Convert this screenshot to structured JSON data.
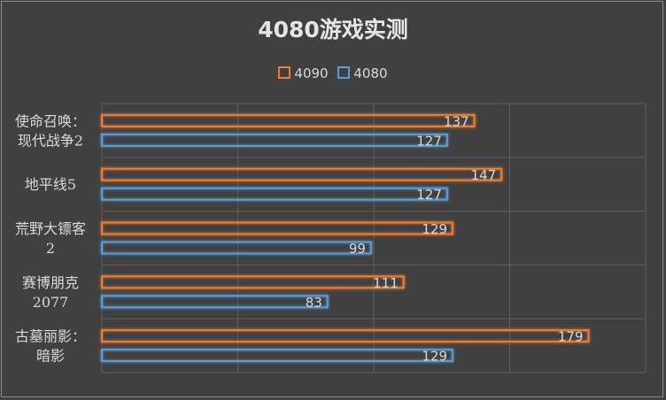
{
  "chart_data": {
    "type": "bar",
    "orientation": "horizontal",
    "title": "4080游戏实测",
    "categories": [
      [
        "使命召唤：",
        "现代战争2"
      ],
      [
        "地平线5"
      ],
      [
        "荒野大镖客",
        "2"
      ],
      [
        "赛博朋克",
        "2077"
      ],
      [
        "古墓丽影：",
        "暗影"
      ]
    ],
    "series": [
      {
        "name": "4090",
        "values": [
          137,
          147,
          129,
          111,
          179
        ],
        "color": "#ed7d31"
      },
      {
        "name": "4080",
        "values": [
          127,
          127,
          99,
          83,
          129
        ],
        "color": "#5b9bd5"
      }
    ],
    "xlim": [
      0,
      200
    ],
    "grid": true,
    "legend_position": "top",
    "data_labels": true
  }
}
